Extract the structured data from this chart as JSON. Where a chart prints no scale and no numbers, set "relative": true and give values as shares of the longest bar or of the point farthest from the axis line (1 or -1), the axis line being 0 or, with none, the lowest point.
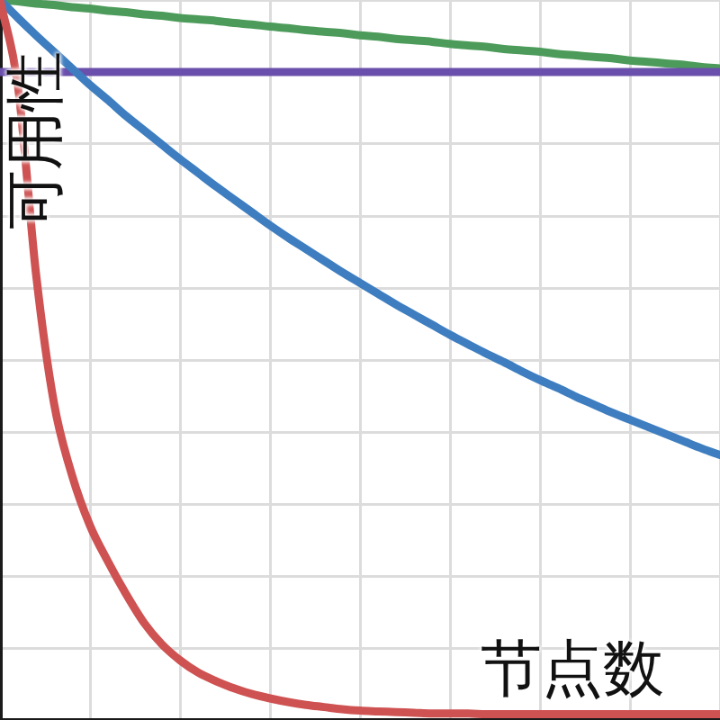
{
  "chart_data": {
    "type": "line",
    "xlabel": "节点数",
    "ylabel": "可用性",
    "relative": true,
    "grid": true,
    "categories": [
      null,
      null,
      null,
      null,
      null,
      null,
      null,
      null,
      null,
      null,
      null,
      null,
      null,
      null,
      null,
      null,
      null,
      null,
      null,
      null,
      null,
      null,
      null,
      null,
      null,
      null,
      null,
      null,
      null,
      null,
      null,
      null,
      null,
      null,
      null,
      null,
      null,
      null,
      null,
      null,
      null
    ],
    "series": [
      {
        "color": "#4c9b5a",
        "values": [
          1.0,
          0.998,
          0.995,
          0.993,
          0.99,
          0.988,
          0.985,
          0.983,
          0.98,
          0.978,
          0.975,
          0.973,
          0.971,
          0.968,
          0.966,
          0.963,
          0.961,
          0.958,
          0.956,
          0.954,
          0.951,
          0.949,
          0.946,
          0.944,
          0.942,
          0.939,
          0.937,
          0.935,
          0.932,
          0.93,
          0.928,
          0.925,
          0.923,
          0.921,
          0.919,
          0.916,
          0.914,
          0.912,
          0.91,
          0.907,
          0.905
        ]
      },
      {
        "color": "#6a50ac",
        "values": [
          0.9,
          0.9,
          0.9,
          0.9,
          0.9,
          0.9,
          0.9,
          0.9,
          0.9,
          0.9,
          0.9,
          0.9,
          0.9,
          0.9,
          0.9,
          0.9,
          0.9,
          0.9,
          0.9,
          0.9,
          0.9,
          0.9,
          0.9,
          0.9,
          0.9,
          0.9,
          0.9,
          0.9,
          0.9,
          0.9,
          0.9,
          0.9,
          0.9,
          0.9,
          0.9,
          0.9,
          0.9,
          0.9,
          0.9,
          0.9,
          0.9
        ]
      },
      {
        "color": "#3e7ec0",
        "values": [
          1.0,
          0.975,
          0.951,
          0.928,
          0.905,
          0.882,
          0.861,
          0.839,
          0.819,
          0.799,
          0.779,
          0.76,
          0.741,
          0.723,
          0.705,
          0.687,
          0.67,
          0.654,
          0.638,
          0.622,
          0.607,
          0.592,
          0.577,
          0.563,
          0.549,
          0.535,
          0.522,
          0.509,
          0.497,
          0.484,
          0.472,
          0.461,
          0.449,
          0.438,
          0.427,
          0.417,
          0.407,
          0.397,
          0.387,
          0.377,
          0.368
        ]
      },
      {
        "color": "#cf5252",
        "values": [
          1.0,
          0.88,
          0.62,
          0.44,
          0.34,
          0.27,
          0.22,
          0.175,
          0.135,
          0.105,
          0.083,
          0.066,
          0.054,
          0.044,
          0.036,
          0.03,
          0.025,
          0.021,
          0.018,
          0.015,
          0.013,
          0.012,
          0.011,
          0.01,
          0.009,
          0.009,
          0.009,
          0.008,
          0.008,
          0.008,
          0.008,
          0.008,
          0.008,
          0.008,
          0.008,
          0.008,
          0.008,
          0.008,
          0.008,
          0.008,
          0.008
        ]
      }
    ]
  }
}
